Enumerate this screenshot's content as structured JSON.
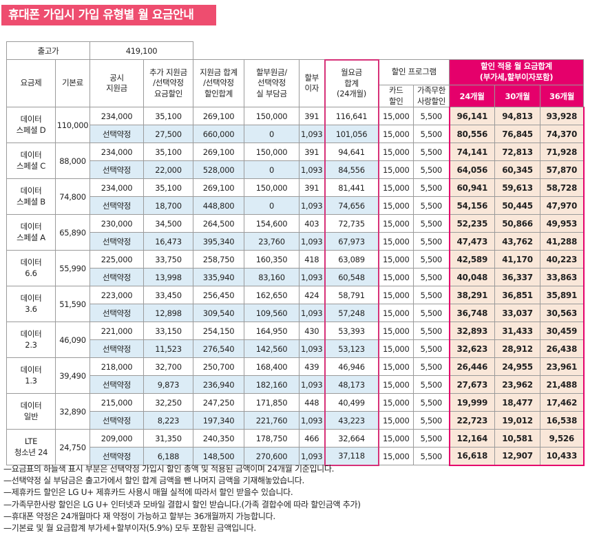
{
  "title": "휴대폰 가입시 가입 유형별 월 요금안내",
  "price_label": "출고가",
  "price_value": "419,100",
  "headers": {
    "plan": "요금제",
    "base": "기본료",
    "subsidy": "공시\n지원금",
    "add_subsidy": "추가 지원금\n/선택약정\n요금할인",
    "total_subsidy": "지원금 합계\n/선택약정\n할인합계",
    "installment": "할부원금/\n선택약정\n실 부담금",
    "interest": "할부\n이자",
    "monthly": "월요금\n합계\n(24개월)",
    "discount_program": "할인 프로그램",
    "card": "카드\n할인",
    "family": "가족무한\n사랑할인",
    "final": "할인 적용 월 요금합계\n(부가세,할부이자포함)",
    "m24": "24개월",
    "m30": "30개월",
    "m36": "36개월"
  },
  "rows": [
    {
      "plan": "데이터\n스페셜 D",
      "base": "110,000",
      "r1": {
        "c1": "234,000",
        "c2": "35,100",
        "c3": "269,100",
        "c4": "150,000",
        "c5": "391",
        "c6": "116,641",
        "c7": "15,000",
        "c8": "5,500",
        "c9": "96,141",
        "c10": "94,813",
        "c11": "93,928"
      },
      "r2": {
        "c1": "선택약정",
        "c2": "27,500",
        "c3": "660,000",
        "c4": "0",
        "c5": "1,093",
        "c6": "101,056",
        "c7": "15,000",
        "c8": "5,500",
        "c9": "80,556",
        "c10": "76,845",
        "c11": "74,370"
      }
    },
    {
      "plan": "데이터\n스페셜 C",
      "base": "88,000",
      "r1": {
        "c1": "234,000",
        "c2": "35,100",
        "c3": "269,100",
        "c4": "150,000",
        "c5": "391",
        "c6": "94,641",
        "c7": "15,000",
        "c8": "5,500",
        "c9": "74,141",
        "c10": "72,813",
        "c11": "71,928"
      },
      "r2": {
        "c1": "선택약정",
        "c2": "22,000",
        "c3": "528,000",
        "c4": "0",
        "c5": "1,093",
        "c6": "84,556",
        "c7": "15,000",
        "c8": "5,500",
        "c9": "64,056",
        "c10": "60,345",
        "c11": "57,870"
      }
    },
    {
      "plan": "데이터\n스페셜 B",
      "base": "74,800",
      "r1": {
        "c1": "234,000",
        "c2": "35,100",
        "c3": "269,100",
        "c4": "150,000",
        "c5": "391",
        "c6": "81,441",
        "c7": "15,000",
        "c8": "5,500",
        "c9": "60,941",
        "c10": "59,613",
        "c11": "58,728"
      },
      "r2": {
        "c1": "선택약정",
        "c2": "18,700",
        "c3": "448,800",
        "c4": "0",
        "c5": "1,093",
        "c6": "74,656",
        "c7": "15,000",
        "c8": "5,500",
        "c9": "54,156",
        "c10": "50,445",
        "c11": "47,970"
      }
    },
    {
      "plan": "데이터\n스페셜 A",
      "base": "65,890",
      "r1": {
        "c1": "230,000",
        "c2": "34,500",
        "c3": "264,500",
        "c4": "154,600",
        "c5": "403",
        "c6": "72,735",
        "c7": "15,000",
        "c8": "5,500",
        "c9": "52,235",
        "c10": "50,866",
        "c11": "49,953"
      },
      "r2": {
        "c1": "선택약정",
        "c2": "16,473",
        "c3": "395,340",
        "c4": "23,760",
        "c5": "1,093",
        "c6": "67,973",
        "c7": "15,000",
        "c8": "5,500",
        "c9": "47,473",
        "c10": "43,762",
        "c11": "41,288"
      }
    },
    {
      "plan": "데이터\n6.6",
      "base": "55,990",
      "r1": {
        "c1": "225,000",
        "c2": "33,750",
        "c3": "258,750",
        "c4": "160,350",
        "c5": "418",
        "c6": "63,089",
        "c7": "15,000",
        "c8": "5,500",
        "c9": "42,589",
        "c10": "41,170",
        "c11": "40,223"
      },
      "r2": {
        "c1": "선택약정",
        "c2": "13,998",
        "c3": "335,940",
        "c4": "83,160",
        "c5": "1,093",
        "c6": "60,548",
        "c7": "15,000",
        "c8": "5,500",
        "c9": "40,048",
        "c10": "36,337",
        "c11": "33,863"
      }
    },
    {
      "plan": "데이터\n3.6",
      "base": "51,590",
      "r1": {
        "c1": "223,000",
        "c2": "33,450",
        "c3": "256,450",
        "c4": "162,650",
        "c5": "424",
        "c6": "58,791",
        "c7": "15,000",
        "c8": "5,500",
        "c9": "38,291",
        "c10": "36,851",
        "c11": "35,891"
      },
      "r2": {
        "c1": "선택약정",
        "c2": "12,898",
        "c3": "309,540",
        "c4": "109,560",
        "c5": "1,093",
        "c6": "57,248",
        "c7": "15,000",
        "c8": "5,500",
        "c9": "36,748",
        "c10": "33,037",
        "c11": "30,563"
      }
    },
    {
      "plan": "데이터\n2.3",
      "base": "46,090",
      "r1": {
        "c1": "221,000",
        "c2": "33,150",
        "c3": "254,150",
        "c4": "164,950",
        "c5": "430",
        "c6": "53,393",
        "c7": "15,000",
        "c8": "5,500",
        "c9": "32,893",
        "c10": "31,433",
        "c11": "30,459"
      },
      "r2": {
        "c1": "선택약정",
        "c2": "11,523",
        "c3": "276,540",
        "c4": "142,560",
        "c5": "1,093",
        "c6": "53,123",
        "c7": "15,000",
        "c8": "5,500",
        "c9": "32,623",
        "c10": "28,912",
        "c11": "26,438"
      }
    },
    {
      "plan": "데이터\n1.3",
      "base": "39,490",
      "r1": {
        "c1": "218,000",
        "c2": "32,700",
        "c3": "250,700",
        "c4": "168,400",
        "c5": "439",
        "c6": "46,946",
        "c7": "15,000",
        "c8": "5,500",
        "c9": "26,446",
        "c10": "24,955",
        "c11": "23,961"
      },
      "r2": {
        "c1": "선택약정",
        "c2": "9,873",
        "c3": "236,940",
        "c4": "182,160",
        "c5": "1,093",
        "c6": "48,173",
        "c7": "15,000",
        "c8": "5,500",
        "c9": "27,673",
        "c10": "23,962",
        "c11": "21,488"
      }
    },
    {
      "plan": "데이터\n일반",
      "base": "32,890",
      "r1": {
        "c1": "215,000",
        "c2": "32,250",
        "c3": "247,250",
        "c4": "171,850",
        "c5": "448",
        "c6": "40,499",
        "c7": "15,000",
        "c8": "5,500",
        "c9": "19,999",
        "c10": "18,477",
        "c11": "17,462"
      },
      "r2": {
        "c1": "선택약정",
        "c2": "8,223",
        "c3": "197,340",
        "c4": "221,760",
        "c5": "1,093",
        "c6": "43,223",
        "c7": "15,000",
        "c8": "5,500",
        "c9": "22,723",
        "c10": "19,012",
        "c11": "16,538"
      }
    },
    {
      "plan": "LTE\n청소년 24",
      "base": "24,750",
      "r1": {
        "c1": "209,000",
        "c2": "31,350",
        "c3": "240,350",
        "c4": "178,750",
        "c5": "466",
        "c6": "32,664",
        "c7": "15,000",
        "c8": "5,500",
        "c9": "12,164",
        "c10": "10,581",
        "c11": "9,526"
      },
      "r2": {
        "c1": "선택약정",
        "c2": "6,188",
        "c3": "148,500",
        "c4": "270,600",
        "c5": "1,093",
        "c6": "37,118",
        "c7": "15,000",
        "c8": "5,500",
        "c9": "16,618",
        "c10": "12,907",
        "c11": "10,433"
      }
    }
  ],
  "notes": [
    "—요금표의 하늘색 표시 부분은 선택약정 가입시 할인 총액 및 적용된 금액이며 24개월 기준입니다.",
    "—선택약정 실 부담금은 출고가에서 할인 합계 금액을 뺀 나머지 금액을 기재해놓았습니다.",
    "—제휴카드 할인은 LG U+ 제휴카드 사용시 매월 실적에 따라서 할인 받을수 있습니다.",
    "—가족무한사랑 할인은 LG U+ 인터넷과 모바일 결합시 할인 받습니다.(가족 결합수에 따라 할인금액 추가)",
    "—휴대폰 약정은 24개월마다 재 약정이 가능하고 할부는 36개월까지 가능합니다.",
    "—기본료 및 월 요금합계 부가세+할부이자(5.9%) 모두 포함된 금액입니다."
  ],
  "colors": {
    "title_bg": "#ee4d6f",
    "header_accent": "#e5006b",
    "sky_blue": "#dcecf6",
    "peach": "#f9e7d9"
  }
}
